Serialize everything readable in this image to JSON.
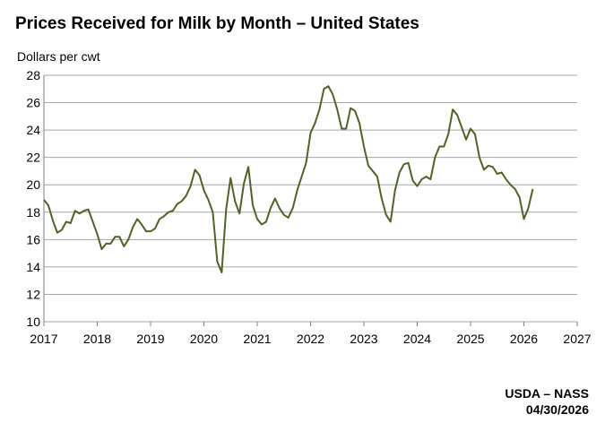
{
  "chart_data": {
    "type": "line",
    "title": "Prices Received for Milk by Month – United States",
    "xlabel": "",
    "ylabel": "Dollars per cwt",
    "xlim": [
      2017,
      2027
    ],
    "ylim": [
      10,
      28
    ],
    "x_ticks": [
      "2017",
      "2018",
      "2019",
      "2020",
      "2021",
      "2022",
      "2023",
      "2024",
      "2025",
      "2026",
      "2027"
    ],
    "y_ticks": [
      "10",
      "12",
      "14",
      "16",
      "18",
      "20",
      "22",
      "24",
      "26",
      "28"
    ],
    "grid": true,
    "legend": "none",
    "line_color": "#4f6228",
    "series": [
      {
        "start": "2017-01",
        "frequency": "monthly",
        "values": [
          18.9,
          18.5,
          17.4,
          16.5,
          16.7,
          17.3,
          17.2,
          18.1,
          17.9,
          18.1,
          18.2,
          17.3,
          16.4,
          15.3,
          15.7,
          15.7,
          16.2,
          16.2,
          15.5,
          16.0,
          16.9,
          17.5,
          17.1,
          16.6,
          16.6,
          16.8,
          17.5,
          17.7,
          18.0,
          18.1,
          18.6,
          18.8,
          19.2,
          19.9,
          21.1,
          20.7,
          19.6,
          18.9,
          18.0,
          14.4,
          13.6,
          18.2,
          20.5,
          18.8,
          17.9,
          20.1,
          21.3,
          18.5,
          17.5,
          17.1,
          17.3,
          18.3,
          19.0,
          18.3,
          17.8,
          17.6,
          18.3,
          19.6,
          20.6,
          21.6,
          23.8,
          24.5,
          25.5,
          27.0,
          27.2,
          26.6,
          25.5,
          24.1,
          24.1,
          25.6,
          25.4,
          24.5,
          22.8,
          21.4,
          21.0,
          20.6,
          19.0,
          17.8,
          17.3,
          19.6,
          20.9,
          21.5,
          21.6,
          20.3,
          19.9,
          20.4,
          20.6,
          20.4,
          22.0,
          22.8,
          22.8,
          23.7,
          25.5,
          25.1,
          24.2,
          23.3,
          24.1,
          23.7,
          22.0,
          21.1,
          21.4,
          21.3,
          20.8,
          20.9,
          20.4,
          20.0,
          19.7,
          19.1,
          17.5,
          18.3,
          19.7
        ]
      }
    ]
  },
  "source": {
    "line1": "USDA – NASS",
    "line2": "04/30/2026"
  }
}
